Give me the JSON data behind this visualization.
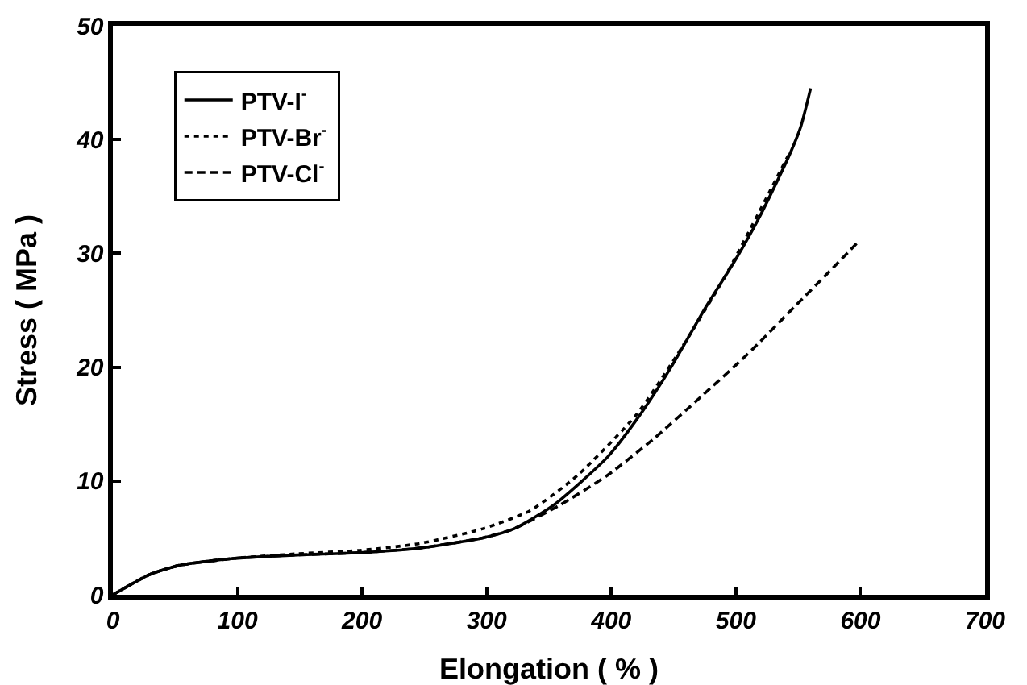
{
  "chart_data": {
    "type": "line",
    "xlabel": "Elongation ( % )",
    "ylabel": "Stress ( MPa )",
    "xlim": [
      0,
      700
    ],
    "xticks": [
      0,
      100,
      200,
      300,
      400,
      500,
      600,
      700
    ],
    "ylim": [
      0,
      50
    ],
    "yticks": [
      0,
      10,
      20,
      30,
      40,
      50
    ],
    "grid": false,
    "legend": "top left",
    "marker": "none",
    "series": [
      {
        "name": "PTV-I$^{-}$",
        "color": "#000000",
        "line_style": "solid",
        "x": [
          0,
          30,
          54,
          98,
          148,
          198,
          246,
          297,
          322,
          354,
          397,
          423,
          448,
          476,
          500,
          519,
          542,
          552,
          560
        ],
        "values": [
          0,
          1.8,
          2.6,
          3.2,
          3.5,
          3.7,
          4.1,
          5.0,
          5.8,
          7.9,
          12.1,
          15.8,
          20,
          25.3,
          29.5,
          33.2,
          38.4,
          41.1,
          44.5
        ]
      },
      {
        "name": "PTV-Br$^{-}$",
        "color": "#000000",
        "line_style": "dotted",
        "x": [
          0,
          30,
          54,
          98,
          148,
          198,
          246,
          297,
          335,
          373,
          420,
          453,
          491,
          519,
          542
        ],
        "values": [
          0,
          1.8,
          2.6,
          3.2,
          3.6,
          3.9,
          4.5,
          5.8,
          7.4,
          10.5,
          15.8,
          21.1,
          27.9,
          33.7,
          38.6
        ]
      },
      {
        "name": "PTV-Cl$^{-}$",
        "color": "#000000",
        "line_style": "dashed",
        "x": [
          0,
          30,
          54,
          98,
          148,
          198,
          246,
          297,
          322,
          359,
          397,
          434,
          472,
          509,
          547,
          575,
          599
        ],
        "values": [
          0,
          1.8,
          2.6,
          3.2,
          3.5,
          3.7,
          4.1,
          5.0,
          5.8,
          7.9,
          10.5,
          13.7,
          17.4,
          21.1,
          25.3,
          28.4,
          31.1
        ]
      }
    ]
  }
}
